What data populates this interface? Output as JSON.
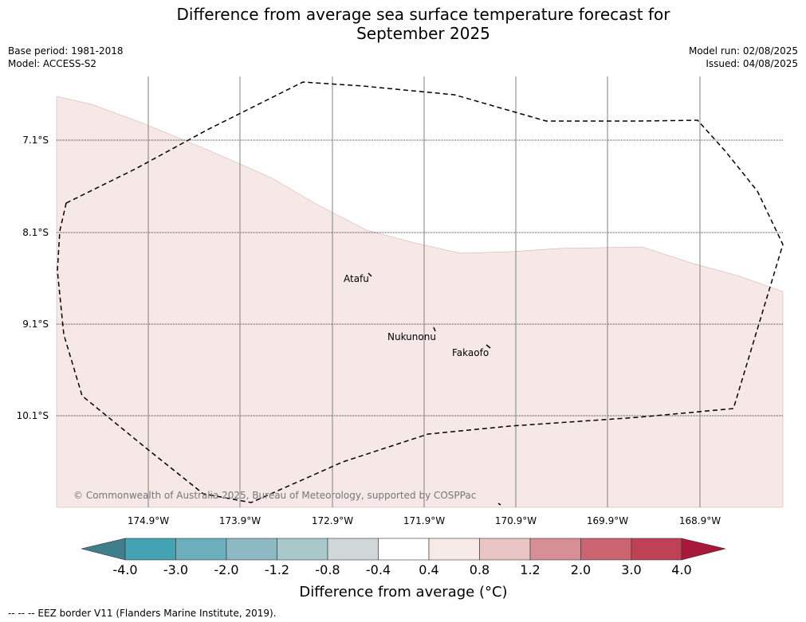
{
  "header": {
    "title_line1": "Difference from average sea surface temperature forecast for",
    "title_line2": "September 2025",
    "base_period": "Base period: 1981-2018",
    "model": "Model: ACCESS-S2",
    "model_run": "Model run: 02/08/2025",
    "issued": "Issued: 04/08/2025"
  },
  "map": {
    "lat_labels": [
      "7.1°S",
      "8.1°S",
      "9.1°S",
      "10.1°S"
    ],
    "lon_labels": [
      "174.9°W",
      "173.9°W",
      "172.9°W",
      "171.9°W",
      "170.9°W",
      "169.9°W",
      "168.9°W"
    ],
    "places": [
      "Atafu",
      "Nukunonu",
      "Fakaofo"
    ],
    "copyright": "© Commonwealth of Australia 2025, Bureau of Meteorology, supported by COSPPac",
    "colors": {
      "anomaly_0_4_to_0_8": "#f5e8e7",
      "eez_border": "#000000",
      "grid": "#808080"
    }
  },
  "colorbar": {
    "ticks": [
      "-4.0",
      "-3.0",
      "-2.0",
      "-1.2",
      "-0.8",
      "-0.4",
      "0.4",
      "0.8",
      "1.2",
      "2.0",
      "3.0",
      "4.0"
    ],
    "colors": [
      "#3f7f8c",
      "#44a3b3",
      "#6bafbd",
      "#8cb9c2",
      "#a9c8cb",
      "#d1d6d6",
      "#ffffff",
      "#f6e9e8",
      "#e9c6c3",
      "#d78f95",
      "#cc6370",
      "#be4155",
      "#a8183a"
    ],
    "title": "Difference from average (°C)"
  },
  "footer": {
    "legend": "-- -- -- EEZ border V11 (Flanders Marine Institute, 2019)."
  }
}
